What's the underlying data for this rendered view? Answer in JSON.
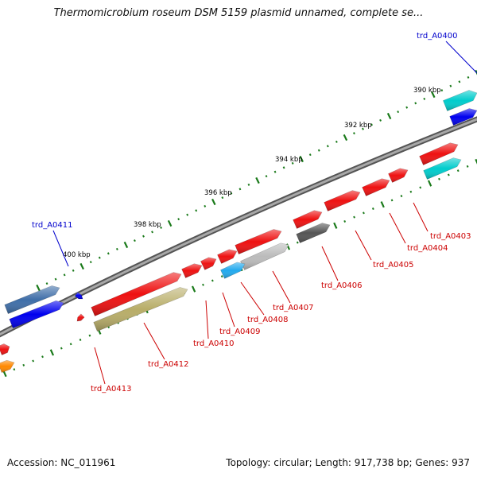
{
  "title": "Thermomicrobium roseum DSM 5159 plasmid unnamed, complete se...",
  "footer": {
    "accession": "Accession: NC_011961",
    "topology": "Topology: circular; Length: 917,738 bp; Genes: 937"
  },
  "colors": {
    "backbone": "#808080",
    "tick": "#1a7a1a",
    "kbp_label": "#000000",
    "gene_label_red": "#cc0000",
    "gene_label_blue": "#0000cc",
    "gene_red": "#ee1111",
    "gene_blue": "#0000ee",
    "gene_steelblue": "#3f6ea8",
    "gene_cyan": "#00cccc",
    "gene_lightblue": "#22aaee",
    "gene_olive": "#b8ad68",
    "gene_darkgray": "#555555",
    "gene_lightgray": "#bbbbbb",
    "gene_orange": "#ff8800"
  },
  "scale_labels": [
    "390 kbp",
    "392 kbp",
    "394 kbp",
    "396 kbp",
    "398 kbp",
    "400 kbp"
  ],
  "gene_labels": {
    "trd_A0400": "trd_A0400",
    "trd_A0403": "trd_A0403",
    "trd_A0404": "trd_A0404",
    "trd_A0405": "trd_A0405",
    "trd_A0406": "trd_A0406",
    "trd_A0407": "trd_A0407",
    "trd_A0408": "trd_A0408",
    "trd_A0409": "trd_A0409",
    "trd_A0410": "trd_A0410",
    "trd_A0411": "trd_A0411",
    "trd_A0412": "trd_A0412",
    "trd_A0413": "trd_A0413"
  }
}
